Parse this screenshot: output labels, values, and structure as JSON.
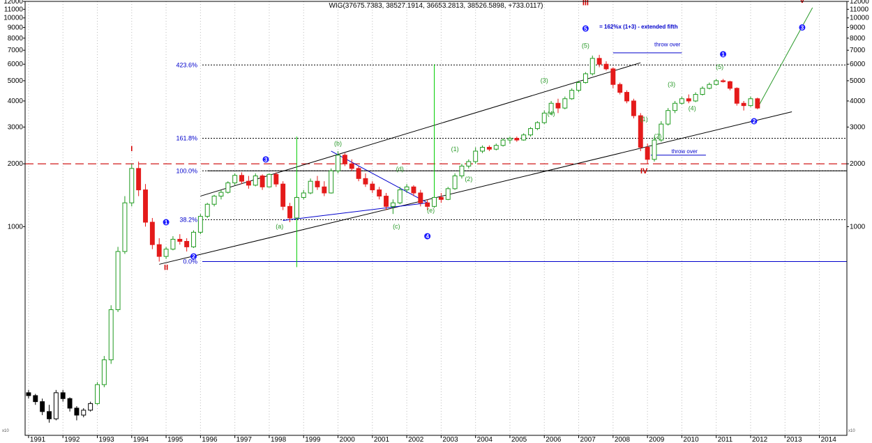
{
  "chart_data": {
    "type": "candlestick",
    "title": "WIG(37675.7383, 38527.1914, 36653.2813, 38526.5898, +733.0117)",
    "y_scale": "log",
    "ylim": [
      100,
      12000
    ],
    "xlim": [
      1990.9,
      2014.8
    ],
    "grid": "vertical yearly dotted",
    "x_ticks": [
      "1991",
      "1992",
      "1993",
      "1994",
      "1995",
      "1996",
      "1997",
      "1998",
      "1999",
      "2000",
      "2001",
      "2002",
      "2003",
      "2004",
      "2005",
      "2006",
      "2007",
      "2008",
      "2009",
      "2010",
      "2011",
      "2012",
      "2013",
      "2014"
    ],
    "y_ticks": [
      "12000",
      "11000",
      "10000",
      "9000",
      "8000",
      "7000",
      "6000",
      "5000",
      "4000",
      "3000",
      "2000",
      "1000"
    ],
    "corner_labels": [
      "x10",
      "x10"
    ],
    "series": [
      {
        "values": [
          [
            1991.0,
            160,
            165,
            150,
            155
          ],
          [
            1991.2,
            155,
            158,
            140,
            145
          ],
          [
            1991.4,
            145,
            150,
            125,
            130
          ],
          [
            1991.6,
            130,
            140,
            115,
            120
          ],
          [
            1991.8,
            120,
            165,
            118,
            160
          ],
          [
            1992.0,
            160,
            165,
            145,
            150
          ],
          [
            1992.2,
            150,
            152,
            130,
            135
          ],
          [
            1992.4,
            135,
            138,
            118,
            125
          ],
          [
            1992.6,
            125,
            135,
            122,
            132
          ],
          [
            1992.8,
            132,
            145,
            130,
            142
          ],
          [
            1993.0,
            142,
            180,
            140,
            175
          ],
          [
            1993.2,
            175,
            240,
            170,
            230
          ],
          [
            1993.4,
            230,
            420,
            220,
            400
          ],
          [
            1993.6,
            400,
            800,
            390,
            760
          ],
          [
            1993.8,
            760,
            1400,
            740,
            1300
          ],
          [
            1994.0,
            1300,
            2000,
            1250,
            1900
          ],
          [
            1994.2,
            1900,
            2050,
            1400,
            1500
          ],
          [
            1994.4,
            1500,
            1600,
            1000,
            1050
          ],
          [
            1994.6,
            1050,
            1100,
            780,
            820
          ],
          [
            1994.8,
            820,
            880,
            680,
            720
          ],
          [
            1995.0,
            720,
            800,
            700,
            780
          ],
          [
            1995.2,
            780,
            900,
            770,
            870
          ],
          [
            1995.4,
            870,
            920,
            820,
            850
          ],
          [
            1995.6,
            850,
            880,
            760,
            800
          ],
          [
            1995.8,
            800,
            960,
            790,
            940
          ],
          [
            1996.0,
            940,
            1150,
            920,
            1120
          ],
          [
            1996.2,
            1120,
            1300,
            1100,
            1280
          ],
          [
            1996.4,
            1280,
            1420,
            1250,
            1400
          ],
          [
            1996.6,
            1400,
            1500,
            1350,
            1460
          ],
          [
            1996.8,
            1460,
            1650,
            1440,
            1620
          ],
          [
            1997.0,
            1620,
            1800,
            1580,
            1760
          ],
          [
            1997.2,
            1760,
            1820,
            1600,
            1650
          ],
          [
            1997.4,
            1650,
            1750,
            1520,
            1580
          ],
          [
            1997.6,
            1580,
            1800,
            1560,
            1750
          ],
          [
            1997.8,
            1750,
            1780,
            1500,
            1550
          ],
          [
            1998.0,
            1550,
            1800,
            1540,
            1780
          ],
          [
            1998.2,
            1780,
            1820,
            1550,
            1600
          ],
          [
            1998.4,
            1600,
            1650,
            1200,
            1250
          ],
          [
            1998.6,
            1250,
            1300,
            1050,
            1100
          ],
          [
            1998.8,
            1100,
            1400,
            1090,
            1380
          ],
          [
            1999.0,
            1380,
            1500,
            1350,
            1450
          ],
          [
            1999.2,
            1450,
            1700,
            1430,
            1650
          ],
          [
            1999.4,
            1650,
            1750,
            1500,
            1550
          ],
          [
            1999.6,
            1550,
            1650,
            1400,
            1450
          ],
          [
            1999.8,
            1450,
            1900,
            1440,
            1850
          ],
          [
            2000.0,
            1850,
            2300,
            1800,
            2200
          ],
          [
            2000.2,
            2200,
            2250,
            1950,
            2000
          ],
          [
            2000.4,
            2000,
            2100,
            1850,
            1900
          ],
          [
            2000.6,
            1900,
            1950,
            1650,
            1700
          ],
          [
            2000.8,
            1700,
            1800,
            1550,
            1600
          ],
          [
            2001.0,
            1600,
            1650,
            1450,
            1500
          ],
          [
            2001.2,
            1500,
            1550,
            1350,
            1400
          ],
          [
            2001.4,
            1400,
            1450,
            1200,
            1250
          ],
          [
            2001.6,
            1250,
            1350,
            1150,
            1300
          ],
          [
            2001.8,
            1300,
            1550,
            1280,
            1500
          ],
          [
            2002.0,
            1500,
            1600,
            1450,
            1550
          ],
          [
            2002.2,
            1550,
            1580,
            1400,
            1450
          ],
          [
            2002.4,
            1450,
            1500,
            1250,
            1300
          ],
          [
            2002.6,
            1300,
            1350,
            1200,
            1250
          ],
          [
            2002.8,
            1250,
            1400,
            1230,
            1380
          ],
          [
            2003.0,
            1380,
            1450,
            1300,
            1350
          ],
          [
            2003.2,
            1350,
            1550,
            1340,
            1520
          ],
          [
            2003.4,
            1520,
            1800,
            1500,
            1750
          ],
          [
            2003.6,
            1750,
            2000,
            1700,
            1950
          ],
          [
            2003.8,
            1950,
            2100,
            1900,
            2050
          ],
          [
            2004.0,
            2050,
            2400,
            2000,
            2300
          ],
          [
            2004.2,
            2300,
            2450,
            2250,
            2400
          ],
          [
            2004.4,
            2400,
            2450,
            2300,
            2350
          ],
          [
            2004.6,
            2350,
            2500,
            2320,
            2450
          ],
          [
            2004.8,
            2450,
            2650,
            2420,
            2600
          ],
          [
            2005.0,
            2600,
            2700,
            2500,
            2650
          ],
          [
            2005.2,
            2650,
            2700,
            2550,
            2600
          ],
          [
            2005.4,
            2600,
            2800,
            2580,
            2750
          ],
          [
            2005.6,
            2750,
            3000,
            2700,
            2950
          ],
          [
            2005.8,
            2950,
            3200,
            2900,
            3150
          ],
          [
            2006.0,
            3150,
            3600,
            3100,
            3500
          ],
          [
            2006.2,
            3500,
            4000,
            3450,
            3900
          ],
          [
            2006.4,
            3900,
            4100,
            3500,
            3700
          ],
          [
            2006.6,
            3700,
            4200,
            3650,
            4100
          ],
          [
            2006.8,
            4100,
            4600,
            4050,
            4500
          ],
          [
            2007.0,
            4500,
            5000,
            4400,
            4900
          ],
          [
            2007.2,
            4900,
            5500,
            4850,
            5400
          ],
          [
            2007.4,
            5400,
            6600,
            5300,
            6400
          ],
          [
            2007.6,
            6400,
            6650,
            5800,
            6000
          ],
          [
            2007.8,
            6000,
            6200,
            5600,
            5700
          ],
          [
            2008.0,
            5700,
            5800,
            4600,
            4800
          ],
          [
            2008.2,
            4800,
            4900,
            4300,
            4400
          ],
          [
            2008.4,
            4400,
            4500,
            3900,
            4000
          ],
          [
            2008.6,
            4000,
            4100,
            3300,
            3400
          ],
          [
            2008.8,
            3400,
            3500,
            2300,
            2400
          ],
          [
            2009.0,
            2400,
            2500,
            2000,
            2100
          ],
          [
            2009.2,
            2100,
            2700,
            2050,
            2600
          ],
          [
            2009.4,
            2600,
            3200,
            2550,
            3100
          ],
          [
            2009.6,
            3100,
            3700,
            3050,
            3600
          ],
          [
            2009.8,
            3600,
            4000,
            3500,
            3900
          ],
          [
            2010.0,
            3900,
            4200,
            3850,
            4100
          ],
          [
            2010.2,
            4100,
            4300,
            3900,
            4000
          ],
          [
            2010.4,
            4000,
            4400,
            3950,
            4300
          ],
          [
            2010.6,
            4300,
            4700,
            4250,
            4600
          ],
          [
            2010.8,
            4600,
            4900,
            4550,
            4800
          ],
          [
            2011.0,
            4800,
            5100,
            4750,
            5000
          ],
          [
            2011.2,
            5000,
            5100,
            4900,
            4950
          ],
          [
            2011.4,
            4950,
            5000,
            4500,
            4600
          ],
          [
            2011.6,
            4600,
            4650,
            3800,
            3900
          ],
          [
            2011.8,
            3900,
            4000,
            3600,
            3800
          ],
          [
            2012.0,
            3800,
            4200,
            3750,
            4100
          ],
          [
            2012.2,
            4100,
            4150,
            3650,
            3700
          ]
        ]
      }
    ],
    "fib_levels": [
      {
        "label": "423.6%",
        "value": 5950
      },
      {
        "label": "161.8%",
        "value": 2650
      },
      {
        "label": "100.0%",
        "value": 1850
      },
      {
        "label": "38.2%",
        "value": 1080
      },
      {
        "label": "0.0%",
        "value": 680
      }
    ],
    "wave_labels_primary": [
      {
        "label": "I",
        "x": 1994.0,
        "y": 2300
      },
      {
        "label": "II",
        "x": 1995.0,
        "y": 620
      },
      {
        "label": "III",
        "x": 2007.2,
        "y": 11500
      },
      {
        "label": "IV",
        "x": 2008.9,
        "y": 1800
      },
      {
        "label": "V",
        "x": 2013.5,
        "y": 11800
      }
    ],
    "wave_labels_intermediate": [
      {
        "label": "1",
        "x": 1995.0,
        "y": 1050
      },
      {
        "label": "2",
        "x": 1995.8,
        "y": 720
      },
      {
        "label": "3",
        "x": 1997.9,
        "y": 2100
      },
      {
        "label": "4",
        "x": 2002.6,
        "y": 900
      },
      {
        "label": "5",
        "x": 2007.2,
        "y": 8900
      },
      {
        "label": "1",
        "x": 2011.2,
        "y": 6700
      },
      {
        "label": "2",
        "x": 2012.1,
        "y": 3200
      },
      {
        "label": "3",
        "x": 2013.5,
        "y": 9000
      }
    ],
    "wave_labels_minor": [
      {
        "label": "(a)",
        "x": 1998.3,
        "y": 980
      },
      {
        "label": "(b)",
        "x": 2000.0,
        "y": 2450
      },
      {
        "label": "(c)",
        "x": 2001.7,
        "y": 980
      },
      {
        "label": "(d)",
        "x": 2001.8,
        "y": 1850
      },
      {
        "label": "(e)",
        "x": 2002.7,
        "y": 1170
      },
      {
        "label": "(1)",
        "x": 2003.4,
        "y": 2300
      },
      {
        "label": "(2)",
        "x": 2003.8,
        "y": 1650
      },
      {
        "label": "(3)",
        "x": 2006.0,
        "y": 4900
      },
      {
        "label": "(4)",
        "x": 2006.2,
        "y": 3400
      },
      {
        "label": "(5)",
        "x": 2007.2,
        "y": 7200
      },
      {
        "label": "(1)",
        "x": 2008.9,
        "y": 3200
      },
      {
        "label": "(2)",
        "x": 2009.3,
        "y": 2650
      },
      {
        "label": "(3)",
        "x": 2009.7,
        "y": 4700
      },
      {
        "label": "(4)",
        "x": 2010.3,
        "y": 3600
      },
      {
        "label": "(5)",
        "x": 2011.1,
        "y": 5700
      }
    ],
    "annotations": [
      {
        "text": "= 162%x (1+3) - extended fifth",
        "x": 2007.6,
        "y": 8900
      },
      {
        "text": "throw over",
        "x": 2009.2,
        "y": 7300
      },
      {
        "text": "throw over",
        "x": 2009.7,
        "y": 2250
      }
    ],
    "lines": [
      {
        "kind": "channel",
        "color": "#000000",
        "x1": 1996.0,
        "y1": 1400,
        "x2": 2008.8,
        "y2": 6100
      },
      {
        "kind": "channel",
        "color": "#000000",
        "x1": 1994.8,
        "y1": 660,
        "x2": 2013.2,
        "y2": 3550
      },
      {
        "kind": "triangle",
        "color": "#0000cc",
        "x1": 1999.8,
        "y1": 2300,
        "x2": 2002.6,
        "y2": 1300
      },
      {
        "kind": "triangle",
        "color": "#0000cc",
        "x1": 1998.4,
        "y1": 1070,
        "x2": 2002.6,
        "y2": 1300
      },
      {
        "kind": "projection",
        "color": "#2a9a2a",
        "x1": 2012.2,
        "y1": 3700,
        "x2": 2013.8,
        "y2": 11200
      },
      {
        "kind": "throw-over",
        "color": "#0000cc",
        "x1": 2008.0,
        "y1": 6800,
        "x2": 2010.0,
        "y2": 6800
      },
      {
        "kind": "throw-over",
        "color": "#0000cc",
        "x1": 2009.1,
        "y1": 2200,
        "x2": 2010.7,
        "y2": 2200
      },
      {
        "kind": "horizontal",
        "color": "#000000",
        "x1": 1996.2,
        "y1": 1850,
        "x2": 2014.8,
        "y2": 1850
      },
      {
        "kind": "vertical",
        "color": "#00cc00",
        "x1": 1998.8,
        "y1": 640,
        "x2": 1998.8,
        "y2": 2700
      },
      {
        "kind": "vertical",
        "color": "#00cc00",
        "x1": 2002.8,
        "y1": 1250,
        "x2": 2002.8,
        "y2": 6000
      }
    ],
    "resistance_line": {
      "value": 2000,
      "color": "#cc0000"
    }
  }
}
